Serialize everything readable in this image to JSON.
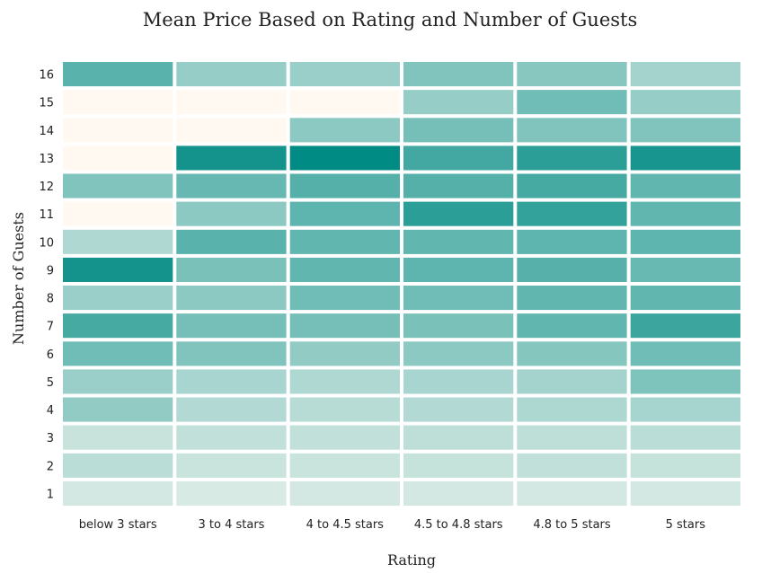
{
  "chart_data": {
    "type": "heatmap",
    "title": "Mean Price Based on Rating and Number of Guests",
    "xlabel": "Rating",
    "ylabel": "Number of Guests",
    "x_categories": [
      "below 3 stars",
      "3 to 4 stars",
      "4 to 4.5 stars",
      "4.5 to 4.8 stars",
      "4.8 to 5 stars",
      "5 stars"
    ],
    "y_categories": [
      "1",
      "2",
      "3",
      "4",
      "5",
      "6",
      "7",
      "8",
      "9",
      "10",
      "11",
      "12",
      "13",
      "14",
      "15",
      "16"
    ],
    "values": [
      [
        0.1,
        0.08,
        0.1,
        0.1,
        0.1,
        0.1
      ],
      [
        0.2,
        0.14,
        0.14,
        0.16,
        0.17,
        0.16
      ],
      [
        0.15,
        0.17,
        0.17,
        0.19,
        0.19,
        0.2
      ],
      [
        0.38,
        0.24,
        0.22,
        0.24,
        0.26,
        0.29
      ],
      [
        0.34,
        0.28,
        0.25,
        0.28,
        0.3,
        0.46
      ],
      [
        0.52,
        0.45,
        0.38,
        0.4,
        0.43,
        0.52
      ],
      [
        0.7,
        0.5,
        0.5,
        0.48,
        0.58,
        0.75
      ],
      [
        0.34,
        0.4,
        0.52,
        0.52,
        0.58,
        0.58
      ],
      [
        0.92,
        0.48,
        0.58,
        0.6,
        0.63,
        0.55
      ],
      [
        0.25,
        0.62,
        0.58,
        0.58,
        0.6,
        0.6
      ],
      [
        null,
        0.4,
        0.6,
        0.82,
        0.78,
        0.58
      ],
      [
        0.45,
        0.56,
        0.64,
        0.64,
        0.7,
        0.58
      ],
      [
        null,
        0.92,
        1.0,
        0.72,
        0.82,
        0.9
      ],
      [
        null,
        null,
        0.4,
        0.5,
        0.45,
        0.45
      ],
      [
        null,
        null,
        null,
        0.36,
        0.52,
        0.36
      ],
      [
        0.62,
        0.36,
        0.34,
        0.45,
        0.42,
        0.3
      ]
    ],
    "colors": {
      "low": "#eaf2ec",
      "high": "#008b84",
      "missing": "#fff9f1"
    },
    "legend": "none",
    "grid": false
  }
}
